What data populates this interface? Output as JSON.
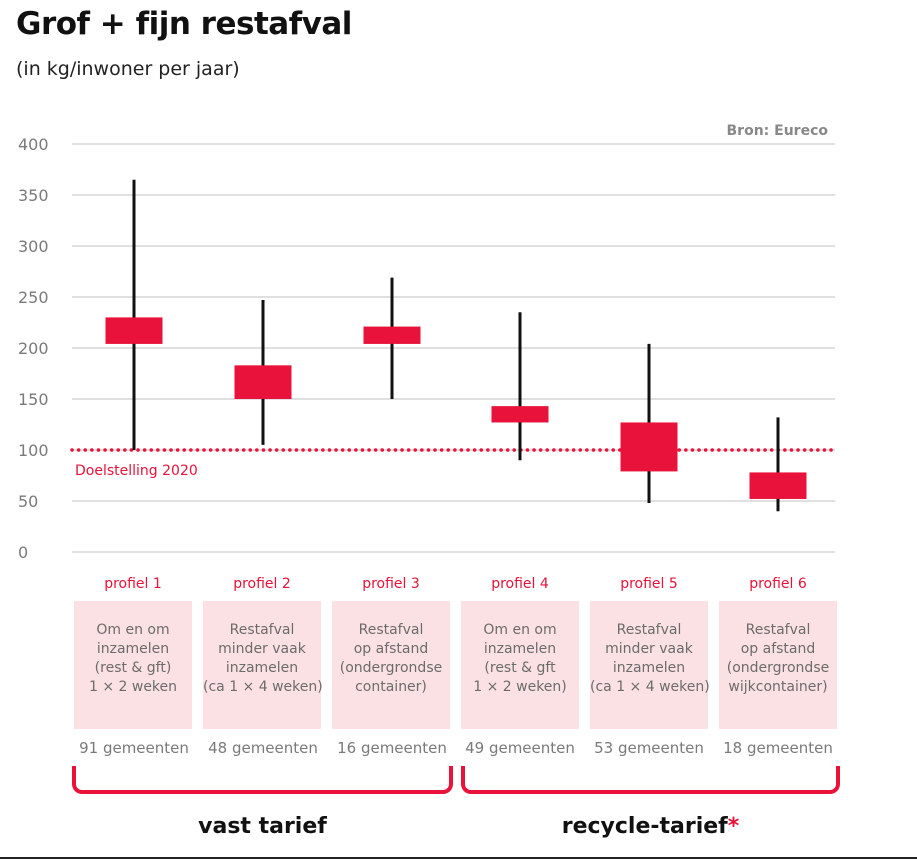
{
  "header": {
    "title": "Grof + fijn restafval",
    "subtitle": "(in kg/inwoner per jaar)"
  },
  "colors": {
    "accent": "#e8123a",
    "box_fill": "#fce1e4",
    "grid": "#d6d6d6",
    "muted_text": "#7a7a7a"
  },
  "chart_data": {
    "type": "candlestick",
    "title": "Grof + fijn restafval",
    "subtitle": "(in kg/inwoner per jaar)",
    "source": "Bron: Eureco",
    "ylim": [
      0,
      400
    ],
    "yticks": [
      "0",
      "50",
      "100",
      "150",
      "200",
      "250",
      "300",
      "350",
      "400"
    ],
    "grid": true,
    "target": {
      "value": 100,
      "label": "Doelstelling 2020"
    },
    "categories": [
      "profiel 1",
      "profiel 2",
      "profiel 3",
      "profiel 4",
      "profiel 5",
      "profiel 6"
    ],
    "series": [
      {
        "min": 100,
        "box_low": 204,
        "box_high": 230,
        "max": 365
      },
      {
        "min": 105,
        "box_low": 150,
        "box_high": 183,
        "max": 247
      },
      {
        "min": 150,
        "box_low": 204,
        "box_high": 221,
        "max": 269
      },
      {
        "min": 90,
        "box_low": 127,
        "box_high": 143,
        "max": 235
      },
      {
        "min": 48,
        "box_low": 79,
        "box_high": 127,
        "max": 204
      },
      {
        "min": 40,
        "box_low": 52,
        "box_high": 78,
        "max": 132
      }
    ]
  },
  "profiles": [
    {
      "label": "profiel 1",
      "lines": [
        "Om en om",
        "inzamelen",
        "(rest & gft)",
        "1 × 2 weken"
      ],
      "municipalities": "91 gemeenten"
    },
    {
      "label": "profiel 2",
      "lines": [
        "Restafval",
        "minder vaak",
        "inzamelen",
        "(ca 1 × 4 weken)"
      ],
      "municipalities": "48 gemeenten"
    },
    {
      "label": "profiel 3",
      "lines": [
        "Restafval",
        "op afstand",
        "(ondergrondse",
        "container)"
      ],
      "municipalities": "16 gemeenten"
    },
    {
      "label": "profiel 4",
      "lines": [
        "Om en om",
        "inzamelen",
        "(rest & gft",
        "1 × 2 weken)"
      ],
      "municipalities": "49 gemeenten"
    },
    {
      "label": "profiel 5",
      "lines": [
        "Restafval",
        "minder vaak",
        "inzamelen",
        "(ca 1 × 4 weken)"
      ],
      "municipalities": "53 gemeenten"
    },
    {
      "label": "profiel 6",
      "lines": [
        "Restafval",
        "op afstand",
        "(ondergrondse",
        "wijkcontainer)"
      ],
      "municipalities": "18 gemeenten"
    }
  ],
  "groups": [
    {
      "label": "vast tarief",
      "asterisk": ""
    },
    {
      "label": "recycle-tarief",
      "asterisk": "*"
    }
  ]
}
